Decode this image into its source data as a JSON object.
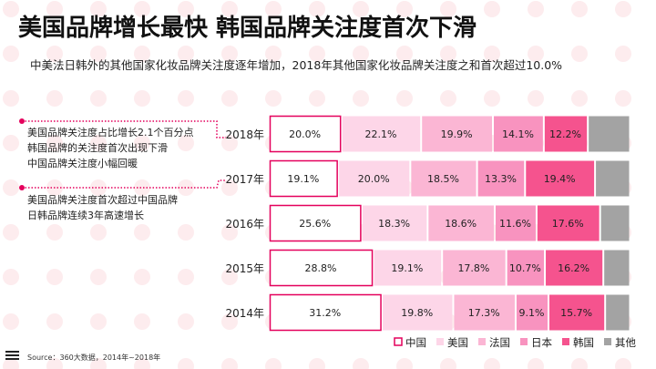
{
  "header": {
    "title": "美国品牌增长最快 韩国品牌关注度首次下滑",
    "subtitle": "中美法日韩外的其他国家化妆品牌关注度逐年增加，2018年其他国家化妆品牌关注度之和首次超过10.0%"
  },
  "notes": [
    {
      "lines": [
        "美国品牌关注度占比增长2.1个百分点",
        "韩国品牌的关注度首次出现下滑",
        "中国品牌关注度小幅回暖"
      ]
    },
    {
      "lines": [
        "美国品牌关注度首次超过中国品牌",
        "日韩品牌连续3年高速增长"
      ]
    }
  ],
  "source": "Source：360大数据，2014年~2018年",
  "chart_data": {
    "type": "bar",
    "orientation": "horizontal",
    "stacked": "percent",
    "categories": [
      "2018年",
      "2017年",
      "2016年",
      "2015年",
      "2014年"
    ],
    "series": [
      {
        "name": "中国",
        "color": "#ffffff",
        "border": "#e4005c",
        "values": [
          20.0,
          19.1,
          25.6,
          28.8,
          31.2
        ]
      },
      {
        "name": "美国",
        "color": "#fdd6e8",
        "values": [
          22.1,
          20.0,
          18.3,
          19.1,
          19.8
        ]
      },
      {
        "name": "法国",
        "color": "#fbb6d4",
        "values": [
          19.9,
          18.5,
          18.6,
          17.8,
          17.3
        ]
      },
      {
        "name": "日本",
        "color": "#f893bf",
        "values": [
          14.1,
          13.3,
          11.6,
          10.7,
          9.1
        ]
      },
      {
        "name": "韩国",
        "color": "#f5538e",
        "values": [
          12.2,
          19.4,
          17.6,
          16.2,
          15.7
        ]
      },
      {
        "name": "其他",
        "color": "#a3a3a3",
        "values": [
          11.7,
          9.7,
          8.3,
          7.4,
          6.9
        ]
      }
    ],
    "labeled_series": [
      "中国",
      "美国",
      "法国",
      "日本",
      "韩国"
    ],
    "legend": "bottom-right"
  }
}
